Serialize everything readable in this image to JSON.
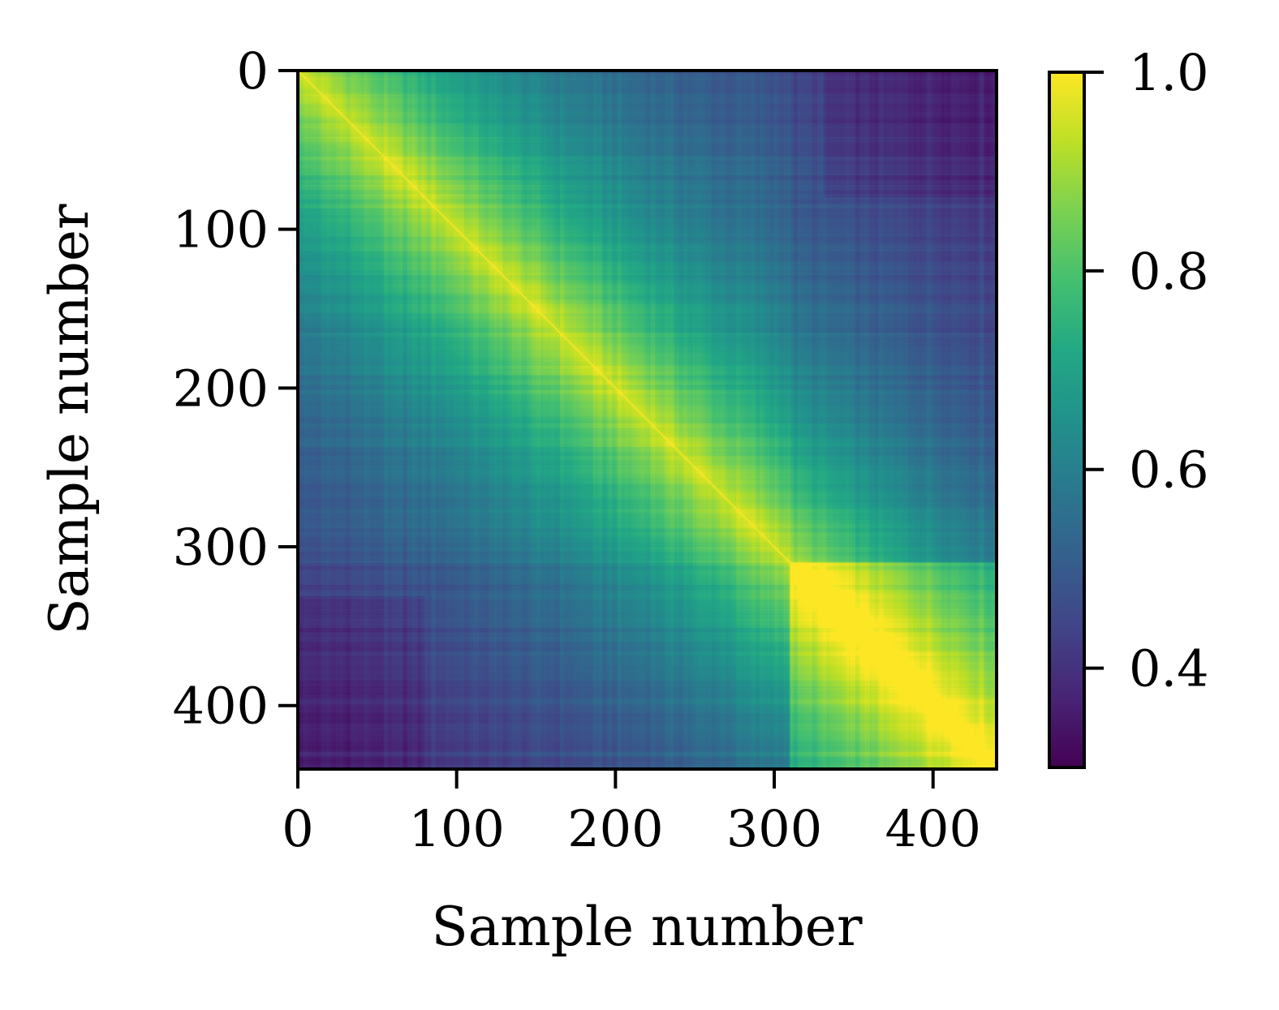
{
  "chart_data": {
    "type": "heatmap",
    "title": "",
    "xlabel": "Sample number",
    "ylabel": "Sample number",
    "n_samples": 440,
    "xlim": [
      0,
      440
    ],
    "ylim": [
      440,
      0
    ],
    "x_ticks": [
      0,
      100,
      200,
      300,
      400
    ],
    "y_ticks": [
      0,
      100,
      200,
      300,
      400
    ],
    "x_tick_labels": [
      "0",
      "100",
      "200",
      "300",
      "400"
    ],
    "y_tick_labels": [
      "0",
      "100",
      "200",
      "300",
      "400"
    ],
    "colormap": "viridis",
    "colorbar": {
      "vmin": 0.3,
      "vmax": 1.0,
      "ticks": [
        0.4,
        0.6,
        0.8,
        1.0
      ],
      "tick_labels": [
        "0.4",
        "0.6",
        "0.8",
        "1.0"
      ]
    },
    "description_values": {
      "diagonal": 1.0,
      "high_block_sample_range": [
        310,
        440
      ],
      "lowest_region_value": 0.4
    }
  }
}
